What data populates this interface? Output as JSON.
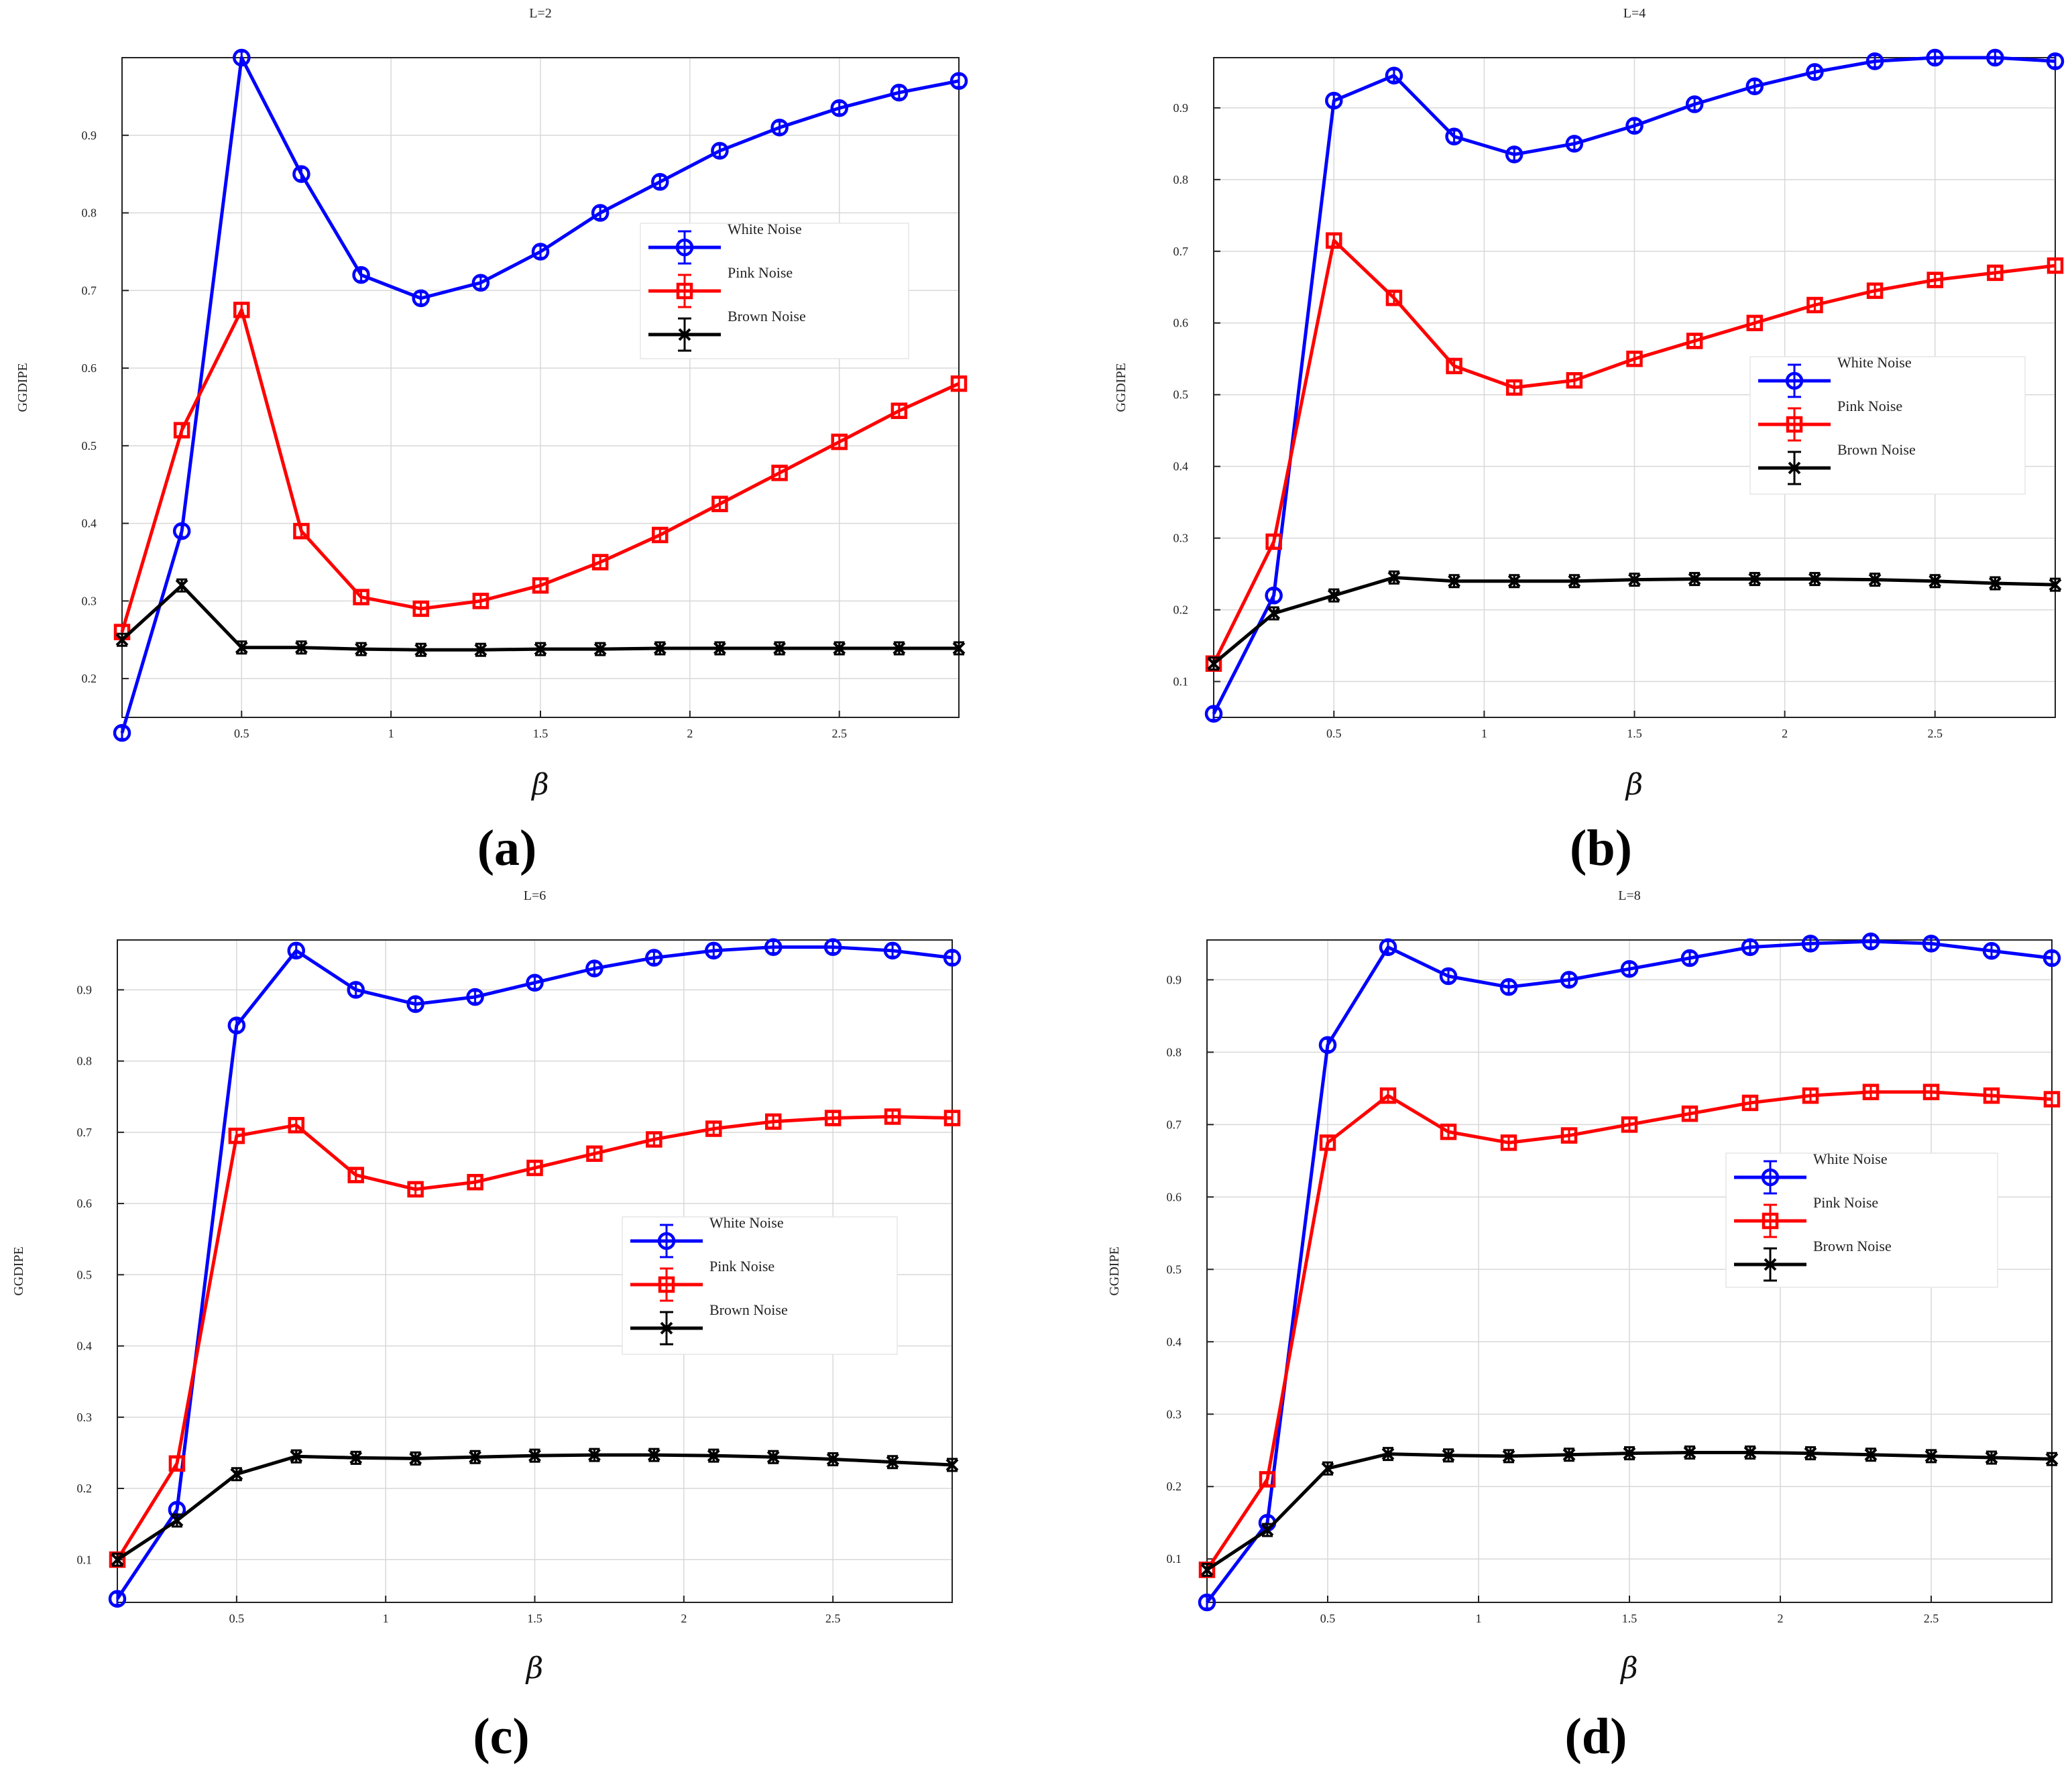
{
  "chart_data": [
    {
      "id": "a",
      "type": "line",
      "title": "L=2",
      "caption_letter": "a",
      "xlabel": "β",
      "ylabel": "GGDIPE",
      "xlim": [
        0.1,
        2.9
      ],
      "ylim": [
        0.15,
        1.0
      ],
      "xticks": [
        0.5,
        1,
        1.5,
        2,
        2.5
      ],
      "xtick_labels": [
        "0.5",
        "1",
        "1.5",
        "2",
        "2.5"
      ],
      "yticks": [
        0.2,
        0.3,
        0.4,
        0.5,
        0.6,
        0.7,
        0.8,
        0.9
      ],
      "ytick_labels": [
        "0.2",
        "0.3",
        "0.4",
        "0.5",
        "0.6",
        "0.7",
        "0.8",
        "0.9"
      ],
      "x": [
        0.1,
        0.3,
        0.5,
        0.7,
        0.9,
        1.1,
        1.3,
        1.5,
        1.7,
        1.9,
        2.1,
        2.3,
        2.5,
        2.7,
        2.9
      ],
      "legend_position": "center-right",
      "series": [
        {
          "name": "White Noise",
          "color": "#0000ff",
          "marker": "circle",
          "values": [
            0.13,
            0.39,
            1.0,
            0.85,
            0.72,
            0.69,
            0.71,
            0.75,
            0.8,
            0.84,
            0.88,
            0.91,
            0.935,
            0.955,
            0.97
          ]
        },
        {
          "name": "Pink Noise",
          "color": "#ff0000",
          "marker": "square",
          "values": [
            0.26,
            0.52,
            0.675,
            0.39,
            0.305,
            0.29,
            0.3,
            0.32,
            0.35,
            0.385,
            0.425,
            0.465,
            0.505,
            0.545,
            0.58
          ]
        },
        {
          "name": "Brown Noise",
          "color": "#000000",
          "marker": "star",
          "values": [
            0.25,
            0.32,
            0.24,
            0.24,
            0.238,
            0.237,
            0.237,
            0.238,
            0.238,
            0.239,
            0.239,
            0.239,
            0.239,
            0.239,
            0.239
          ]
        }
      ]
    },
    {
      "id": "b",
      "type": "line",
      "title": "L=4",
      "caption_letter": "b",
      "xlabel": "β",
      "ylabel": "GGDIPE",
      "xlim": [
        0.1,
        2.9
      ],
      "ylim": [
        0.05,
        0.97
      ],
      "xticks": [
        0.5,
        1,
        1.5,
        2,
        2.5
      ],
      "xtick_labels": [
        "0.5",
        "1",
        "1.5",
        "2",
        "2.5"
      ],
      "yticks": [
        0.1,
        0.2,
        0.3,
        0.4,
        0.5,
        0.6,
        0.7,
        0.8,
        0.9
      ],
      "ytick_labels": [
        "0.1",
        "0.2",
        "0.3",
        "0.4",
        "0.5",
        "0.6",
        "0.7",
        "0.8",
        "0.9"
      ],
      "x": [
        0.1,
        0.3,
        0.5,
        0.7,
        0.9,
        1.1,
        1.3,
        1.5,
        1.7,
        1.9,
        2.1,
        2.3,
        2.5,
        2.7,
        2.9
      ],
      "legend_position": "right",
      "series": [
        {
          "name": "White Noise",
          "color": "#0000ff",
          "marker": "circle",
          "values": [
            0.055,
            0.22,
            0.91,
            0.945,
            0.86,
            0.835,
            0.85,
            0.875,
            0.905,
            0.93,
            0.95,
            0.965,
            0.97,
            0.97,
            0.965
          ]
        },
        {
          "name": "Pink Noise",
          "color": "#ff0000",
          "marker": "square",
          "values": [
            0.125,
            0.295,
            0.715,
            0.635,
            0.54,
            0.51,
            0.52,
            0.55,
            0.575,
            0.6,
            0.625,
            0.645,
            0.66,
            0.67,
            0.68
          ]
        },
        {
          "name": "Brown Noise",
          "color": "#000000",
          "marker": "star",
          "values": [
            0.125,
            0.195,
            0.22,
            0.245,
            0.24,
            0.24,
            0.24,
            0.242,
            0.243,
            0.243,
            0.243,
            0.242,
            0.24,
            0.237,
            0.235
          ]
        }
      ]
    },
    {
      "id": "c",
      "type": "line",
      "title": "L=6",
      "caption_letter": "c",
      "xlabel": "β",
      "ylabel": "GGDIPE",
      "xlim": [
        0.1,
        2.9
      ],
      "ylim": [
        0.04,
        0.97
      ],
      "xticks": [
        0.5,
        1,
        1.5,
        2,
        2.5
      ],
      "xtick_labels": [
        "0.5",
        "1",
        "1.5",
        "2",
        "2.5"
      ],
      "yticks": [
        0.1,
        0.2,
        0.3,
        0.4,
        0.5,
        0.6,
        0.7,
        0.8,
        0.9
      ],
      "ytick_labels": [
        "0.1",
        "0.2",
        "0.3",
        "0.4",
        "0.5",
        "0.6",
        "0.7",
        "0.8",
        "0.9"
      ],
      "x": [
        0.1,
        0.3,
        0.5,
        0.7,
        0.9,
        1.1,
        1.3,
        1.5,
        1.7,
        1.9,
        2.1,
        2.3,
        2.5,
        2.7,
        2.9
      ],
      "legend_position": "center-right",
      "series": [
        {
          "name": "White Noise",
          "color": "#0000ff",
          "marker": "circle",
          "values": [
            0.045,
            0.17,
            0.85,
            0.955,
            0.9,
            0.88,
            0.89,
            0.91,
            0.93,
            0.945,
            0.955,
            0.96,
            0.96,
            0.955,
            0.945
          ]
        },
        {
          "name": "Pink Noise",
          "color": "#ff0000",
          "marker": "square",
          "values": [
            0.1,
            0.235,
            0.695,
            0.71,
            0.64,
            0.62,
            0.63,
            0.65,
            0.67,
            0.69,
            0.705,
            0.715,
            0.72,
            0.722,
            0.72
          ]
        },
        {
          "name": "Brown Noise",
          "color": "#000000",
          "marker": "star",
          "values": [
            0.1,
            0.155,
            0.22,
            0.245,
            0.243,
            0.242,
            0.244,
            0.246,
            0.247,
            0.247,
            0.246,
            0.244,
            0.241,
            0.237,
            0.233
          ]
        }
      ]
    },
    {
      "id": "d",
      "type": "line",
      "title": "L=8",
      "caption_letter": "d",
      "xlabel": "β",
      "ylabel": "GGDIPE",
      "xlim": [
        0.1,
        2.9
      ],
      "ylim": [
        0.04,
        0.955
      ],
      "xticks": [
        0.5,
        1,
        1.5,
        2,
        2.5
      ],
      "xtick_labels": [
        "0.5",
        "1",
        "1.5",
        "2",
        "2.5"
      ],
      "yticks": [
        0.1,
        0.2,
        0.3,
        0.4,
        0.5,
        0.6,
        0.7,
        0.8,
        0.9
      ],
      "ytick_labels": [
        "0.1",
        "0.2",
        "0.3",
        "0.4",
        "0.5",
        "0.6",
        "0.7",
        "0.8",
        "0.9"
      ],
      "x": [
        0.1,
        0.3,
        0.5,
        0.7,
        0.9,
        1.1,
        1.3,
        1.5,
        1.7,
        1.9,
        2.1,
        2.3,
        2.5,
        2.7,
        2.9
      ],
      "legend_position": "right",
      "series": [
        {
          "name": "White Noise",
          "color": "#0000ff",
          "marker": "circle",
          "values": [
            0.04,
            0.15,
            0.81,
            0.945,
            0.905,
            0.89,
            0.9,
            0.915,
            0.93,
            0.945,
            0.95,
            0.953,
            0.95,
            0.94,
            0.93
          ]
        },
        {
          "name": "Pink Noise",
          "color": "#ff0000",
          "marker": "square",
          "values": [
            0.085,
            0.21,
            0.675,
            0.74,
            0.69,
            0.675,
            0.685,
            0.7,
            0.715,
            0.73,
            0.74,
            0.745,
            0.745,
            0.74,
            0.735
          ]
        },
        {
          "name": "Brown Noise",
          "color": "#000000",
          "marker": "star",
          "values": [
            0.085,
            0.14,
            0.225,
            0.245,
            0.243,
            0.242,
            0.244,
            0.246,
            0.247,
            0.247,
            0.246,
            0.244,
            0.242,
            0.24,
            0.238
          ]
        }
      ]
    }
  ]
}
